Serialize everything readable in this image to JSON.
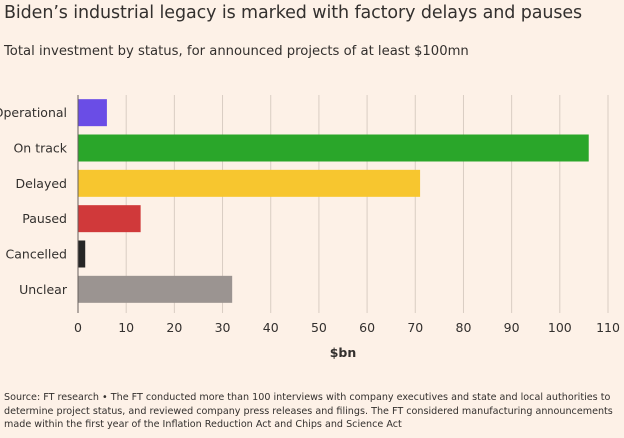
{
  "title": "Biden’s industrial legacy is marked with factory delays and pauses",
  "subtitle": "Total investment by status, for announced projects of at least $100mn",
  "source": "Source: FT research • The FT conducted more than 100 interviews with company executives and state and local authorities to determine project status, and reviewed company press releases and filings. The FT considered manufacturing announcements made within the first year of the Inflation Reduction Act and Chips and Science Act",
  "colors": {
    "background": "#fdf1e7",
    "grid": "#d9cdc3",
    "axis": "#66605c",
    "text": "#33302e"
  },
  "chart_data": {
    "type": "bar",
    "orientation": "horizontal",
    "categories": [
      "Operational",
      "On track",
      "Delayed",
      "Paused",
      "Cancelled",
      "Unclear"
    ],
    "values": [
      6,
      106,
      71,
      13,
      1.5,
      32
    ],
    "bar_colors": [
      "#6a4de6",
      "#2aa62a",
      "#f7c62f",
      "#d0393a",
      "#262626",
      "#9b9491"
    ],
    "xlabel": "$bn",
    "xlim": [
      0,
      110
    ],
    "xticks": [
      0,
      10,
      20,
      30,
      40,
      50,
      60,
      70,
      80,
      90,
      100,
      110
    ],
    "grid": true
  }
}
